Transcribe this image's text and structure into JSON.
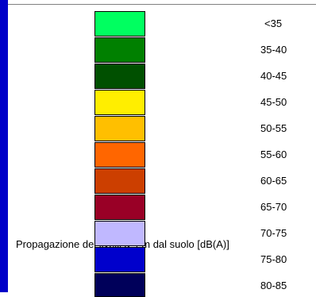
{
  "legend": {
    "caption": "Propagazione dei livelli a 4 m dal suolo [dB(A)]",
    "items": [
      {
        "label": "<35",
        "color": "#00ff60"
      },
      {
        "label": "35-40",
        "color": "#008000"
      },
      {
        "label": "40-45",
        "color": "#005000"
      },
      {
        "label": "45-50",
        "color": "#ffee00"
      },
      {
        "label": "50-55",
        "color": "#ffbf00"
      },
      {
        "label": "55-60",
        "color": "#ff6600"
      },
      {
        "label": "60-65",
        "color": "#cc3f00"
      },
      {
        "label": "65-70",
        "color": "#990026"
      },
      {
        "label": "70-75",
        "color": "#c0b8ff"
      },
      {
        "label": "75-80",
        "color": "#0000cc"
      },
      {
        "label": "80-85",
        "color": "#00005a"
      }
    ]
  }
}
